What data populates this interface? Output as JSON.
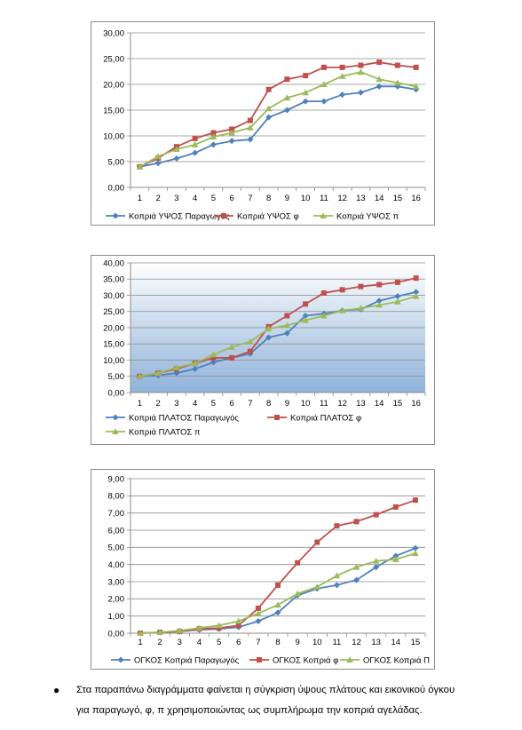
{
  "charts": [
    {
      "type": "line",
      "ylim": [
        0,
        30
      ],
      "yticks": [
        "0,00",
        "5,00",
        "10,00",
        "15,00",
        "20,00",
        "25,00",
        "30,00"
      ],
      "categories": [
        "1",
        "2",
        "3",
        "4",
        "5",
        "6",
        "7",
        "8",
        "9",
        "10",
        "11",
        "12",
        "13",
        "14",
        "15",
        "16"
      ],
      "background": "#ffffff",
      "grid": true,
      "legend_position": "bottom",
      "series": [
        {
          "name": "Κοπριά ΥΨΟΣ Παραγωγός",
          "color": "#4f81bd",
          "marker": "diamond",
          "values": [
            4.0,
            4.7,
            5.6,
            6.7,
            8.3,
            9.0,
            9.3,
            13.6,
            15.0,
            16.7,
            16.7,
            18.0,
            18.4,
            19.6,
            19.6,
            19.0
          ]
        },
        {
          "name": "Κοπριά ΥΨΟΣ φ",
          "color": "#c0504d",
          "marker": "square",
          "values": [
            4.0,
            5.7,
            7.9,
            9.5,
            10.6,
            11.3,
            13.0,
            19.0,
            21.0,
            21.7,
            23.3,
            23.3,
            23.7,
            24.3,
            23.7,
            23.3
          ]
        },
        {
          "name": "Κοπριά ΥΨΟΣ π",
          "color": "#9bbb59",
          "marker": "triangle",
          "values": [
            4.0,
            6.0,
            7.4,
            8.3,
            9.8,
            10.6,
            11.6,
            15.3,
            17.4,
            18.4,
            20.0,
            21.6,
            22.4,
            21.0,
            20.3,
            19.6
          ]
        }
      ]
    },
    {
      "type": "line",
      "ylim": [
        0,
        40
      ],
      "yticks": [
        "0,00",
        "5,00",
        "10,00",
        "15,00",
        "20,00",
        "25,00",
        "30,00",
        "35,00",
        "40,00"
      ],
      "categories": [
        "1",
        "2",
        "3",
        "4",
        "5",
        "6",
        "7",
        "8",
        "9",
        "10",
        "11",
        "12",
        "13",
        "14",
        "15",
        "16"
      ],
      "background": "gradient-blue",
      "grid": true,
      "legend_position": "bottom",
      "series": [
        {
          "name": "Κοπριά ΠΛΑΤΟΣ Παραγωγός",
          "color": "#4f81bd",
          "marker": "diamond",
          "values": [
            5.0,
            5.3,
            6.0,
            7.3,
            9.3,
            10.7,
            12.0,
            17.0,
            18.3,
            23.7,
            24.3,
            25.3,
            25.7,
            28.3,
            29.7,
            31.0
          ]
        },
        {
          "name": "Κοπριά ΠΛΑΤΟΣ φ",
          "color": "#c0504d",
          "marker": "square",
          "values": [
            5.0,
            6.0,
            7.3,
            9.0,
            10.7,
            10.7,
            12.7,
            20.3,
            23.7,
            27.3,
            30.7,
            31.7,
            32.7,
            33.3,
            34.0,
            35.3
          ]
        },
        {
          "name": "Κοπριά ΠΛΑΤΟΣ π",
          "color": "#9bbb59",
          "marker": "triangle",
          "values": [
            5.0,
            6.0,
            7.7,
            9.0,
            11.7,
            14.0,
            15.7,
            19.7,
            20.7,
            22.3,
            23.7,
            25.3,
            26.0,
            27.0,
            28.0,
            29.7
          ]
        }
      ]
    },
    {
      "type": "line",
      "ylim": [
        0,
        9
      ],
      "yticks": [
        "0,00",
        "1,00",
        "2,00",
        "3,00",
        "4,00",
        "5,00",
        "6,00",
        "7,00",
        "8,00",
        "9,00"
      ],
      "categories": [
        "1",
        "2",
        "3",
        "4",
        "5",
        "6",
        "7",
        "8",
        "9",
        "10",
        "11",
        "12",
        "13",
        "14",
        "15"
      ],
      "background": "#ffffff",
      "grid": true,
      "legend_position": "bottom",
      "series": [
        {
          "name": "ΟΓΚΟΣ Κοπριά Παραγωγός",
          "color": "#4f81bd",
          "marker": "diamond",
          "values": [
            0.0,
            0.05,
            0.1,
            0.2,
            0.25,
            0.35,
            0.7,
            1.2,
            2.2,
            2.6,
            2.8,
            3.1,
            3.85,
            4.5,
            4.95
          ]
        },
        {
          "name": "ΟΓΚΟΣ Κοπριά φ",
          "color": "#c0504d",
          "marker": "square",
          "values": [
            0.0,
            0.05,
            0.1,
            0.25,
            0.3,
            0.45,
            1.45,
            2.8,
            4.1,
            5.3,
            6.25,
            6.5,
            6.9,
            7.35,
            7.75
          ]
        },
        {
          "name": "ΟΓΚΟΣ Κοπριά Π",
          "color": "#9bbb59",
          "marker": "triangle",
          "values": [
            0.0,
            0.05,
            0.15,
            0.3,
            0.45,
            0.7,
            1.15,
            1.65,
            2.3,
            2.7,
            3.35,
            3.85,
            4.2,
            4.3,
            4.65
          ]
        }
      ]
    }
  ],
  "caption": {
    "bullet": "●",
    "line1": "Στα παραπάνω διαγράμματα φαίνεται η σύγκριση ύψους πλάτους και εικονικού όγκου",
    "line2": "για παραγωγό, φ, π χρησιμοποιώντας ως συμπλήρωμα την κοπριά αγελάδας."
  }
}
